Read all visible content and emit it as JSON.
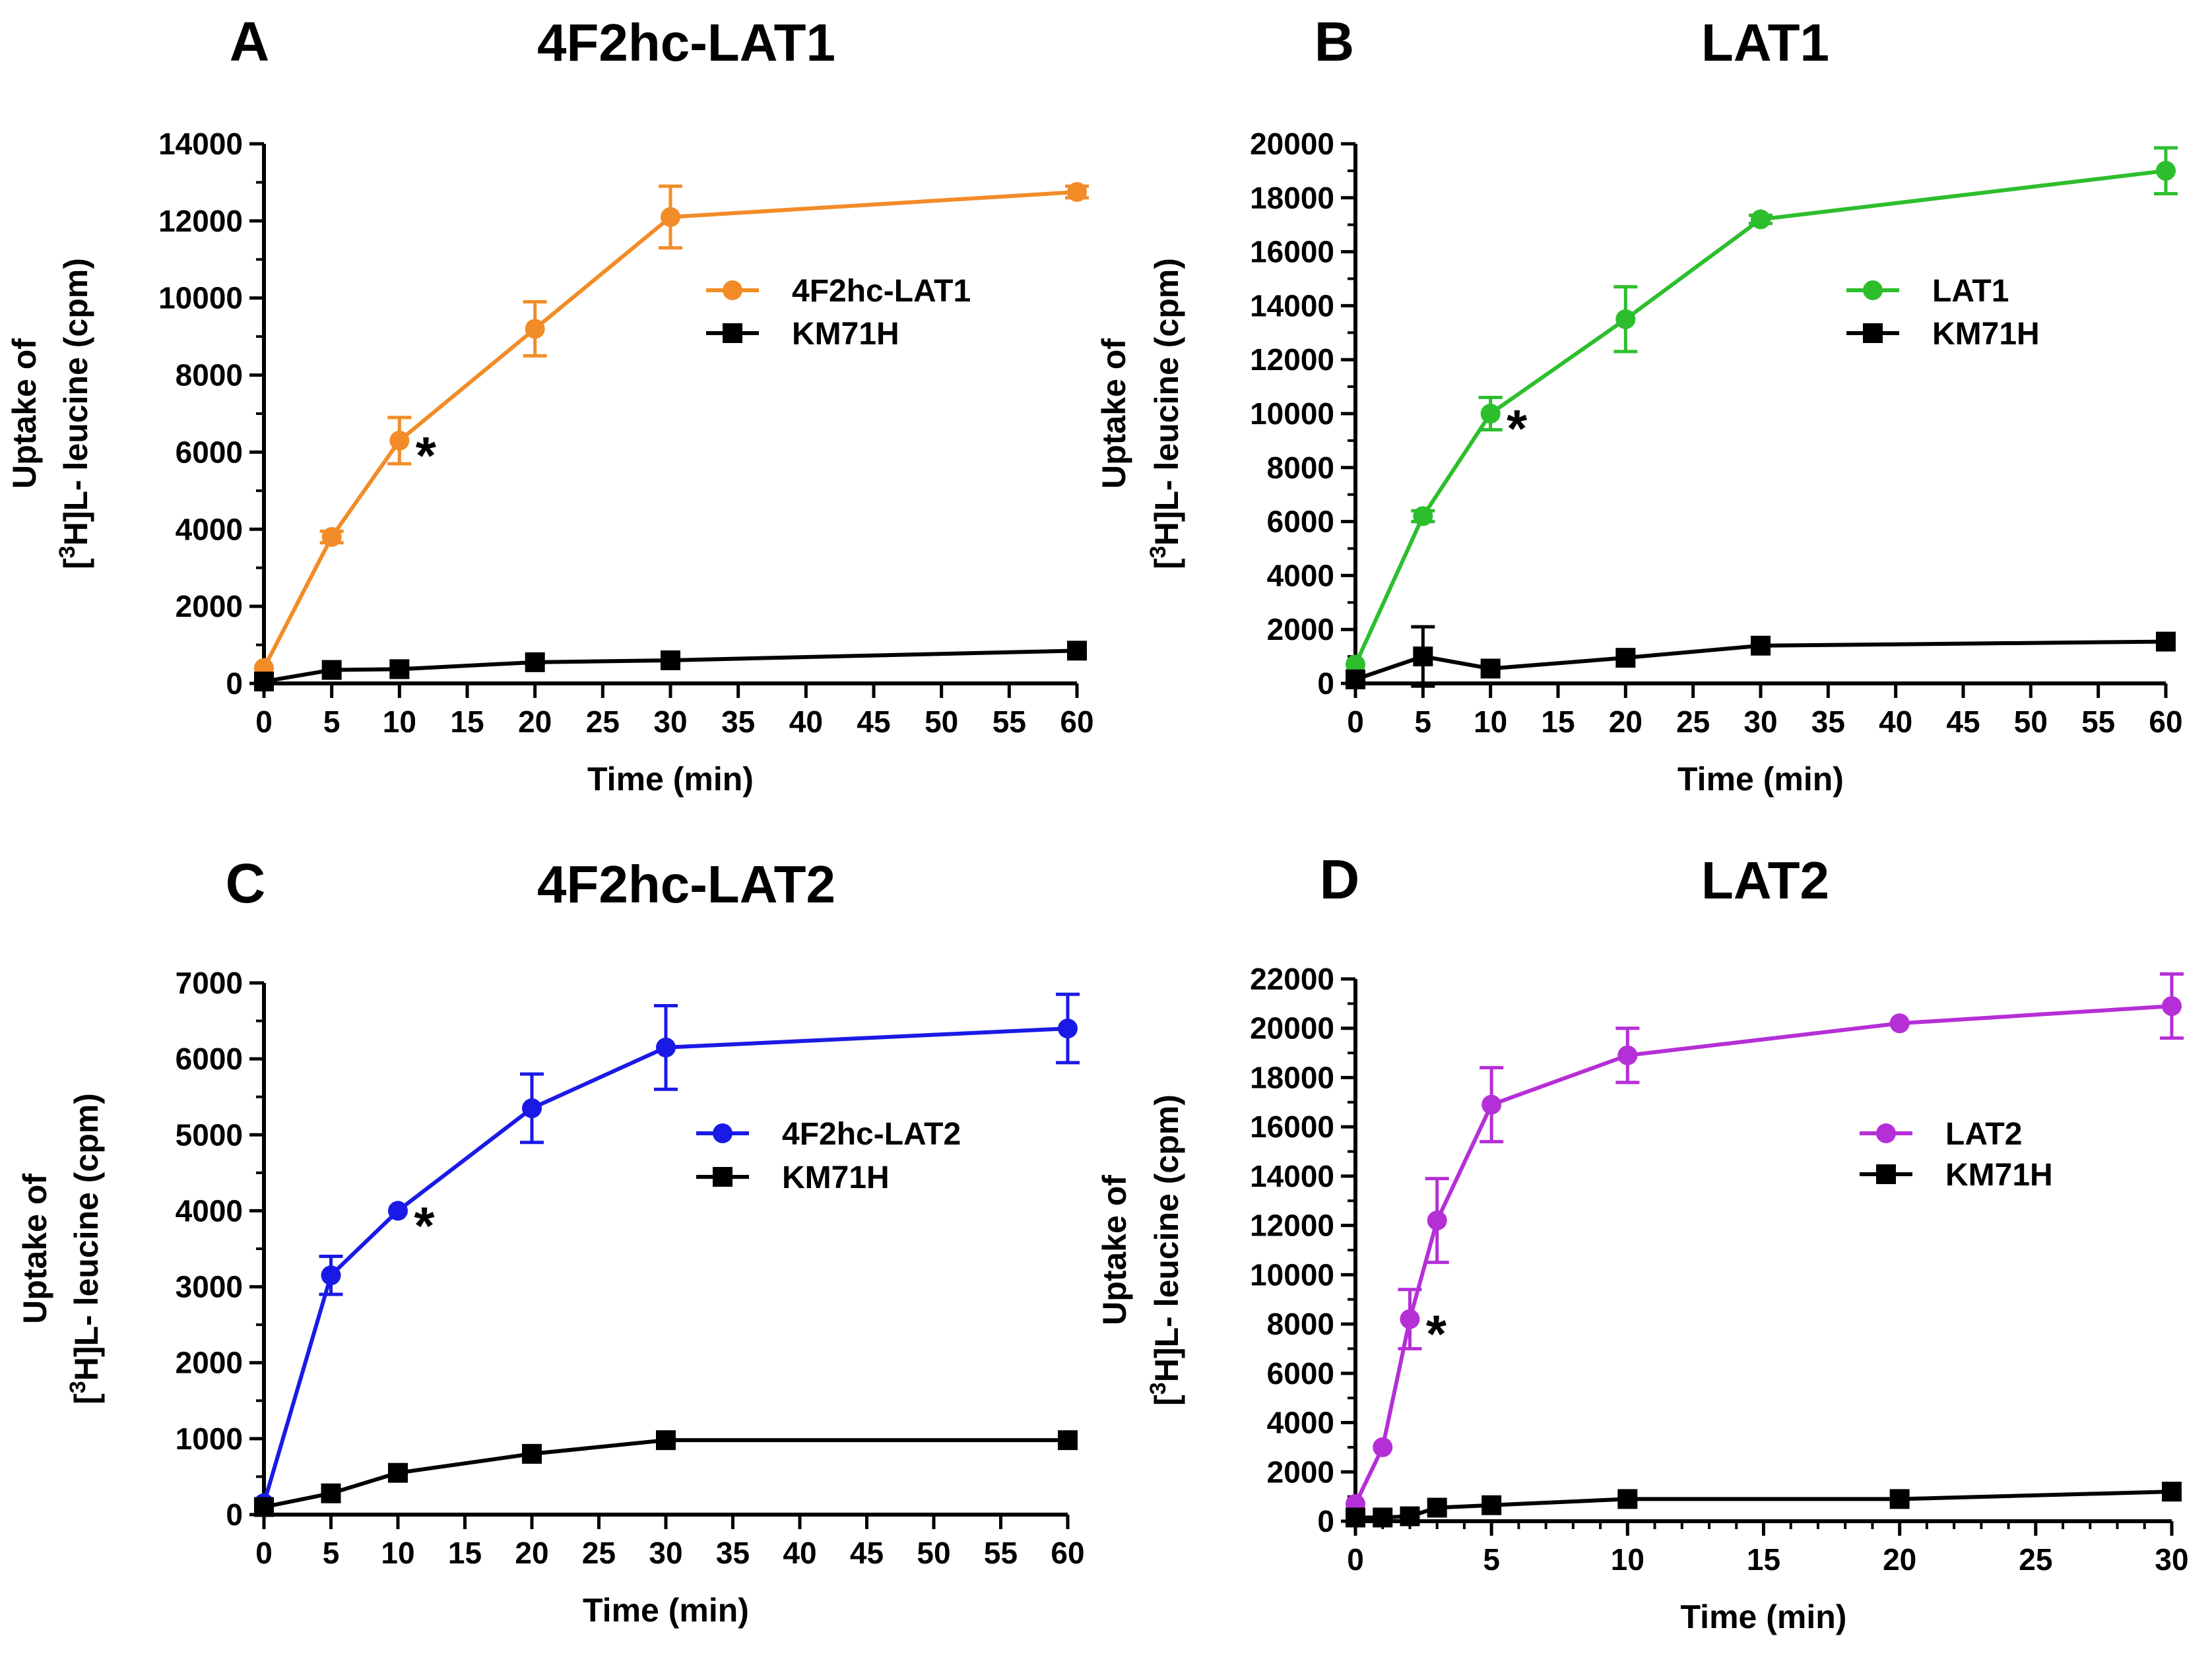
{
  "chart_data": [
    {
      "panel": "A",
      "type": "line",
      "title": "4F2hc-LAT1",
      "xlabel": "Time (min)",
      "ylabel_line1": "Uptake of",
      "ylabel_line2_pre": "[",
      "ylabel_sup": "3",
      "ylabel_line2_post": "H]L- leucine (cpm)",
      "xlim": [
        0,
        60
      ],
      "ylim": [
        0,
        14000
      ],
      "xticks": [
        0,
        5,
        10,
        15,
        20,
        25,
        30,
        35,
        40,
        45,
        50,
        55,
        60
      ],
      "yticks": [
        0,
        2000,
        4000,
        6000,
        8000,
        10000,
        12000,
        14000
      ],
      "legend_position": "upper-right",
      "series": [
        {
          "name": "4F2hc-LAT1",
          "color": "#F28C28",
          "marker": "circle",
          "x": [
            0,
            5,
            10,
            20,
            30,
            60
          ],
          "y": [
            400,
            3800,
            6300,
            9200,
            12100,
            12750
          ],
          "err": [
            0,
            150,
            600,
            700,
            800,
            150
          ]
        },
        {
          "name": "KM71H",
          "color": "#000000",
          "marker": "square",
          "x": [
            0,
            5,
            10,
            20,
            30,
            60
          ],
          "y": [
            50,
            350,
            370,
            550,
            600,
            850
          ],
          "err": [
            0,
            0,
            0,
            0,
            0,
            0
          ]
        }
      ],
      "annotations": [
        {
          "text": "*",
          "x": 10,
          "y": 6300
        }
      ]
    },
    {
      "panel": "B",
      "type": "line",
      "title": "LAT1",
      "xlabel": "Time (min)",
      "ylabel_line1": "Uptake of",
      "ylabel_line2_pre": "[",
      "ylabel_sup": "3",
      "ylabel_line2_post": "H]L- leucine (cpm)",
      "xlim": [
        0,
        60
      ],
      "ylim": [
        0,
        20000
      ],
      "xticks": [
        0,
        5,
        10,
        15,
        20,
        25,
        30,
        35,
        40,
        45,
        50,
        55,
        60
      ],
      "yticks": [
        0,
        2000,
        4000,
        6000,
        8000,
        10000,
        12000,
        14000,
        16000,
        18000,
        20000
      ],
      "legend_position": "upper-right",
      "series": [
        {
          "name": "LAT1",
          "color": "#2DBE2D",
          "marker": "circle",
          "x": [
            0,
            5,
            10,
            20,
            30,
            60
          ],
          "y": [
            700,
            6200,
            10000,
            13500,
            17200,
            19000
          ],
          "err": [
            0,
            200,
            600,
            1200,
            150,
            850
          ]
        },
        {
          "name": "KM71H",
          "color": "#000000",
          "marker": "square",
          "x": [
            0,
            5,
            10,
            20,
            30,
            60
          ],
          "y": [
            150,
            1000,
            550,
            950,
            1400,
            1550
          ],
          "err": [
            0,
            1100,
            0,
            0,
            0,
            0
          ]
        }
      ],
      "annotations": [
        {
          "text": "*",
          "x": 10,
          "y": 10000
        }
      ]
    },
    {
      "panel": "C",
      "type": "line",
      "title": "4F2hc-LAT2",
      "xlabel": "Time (min)",
      "ylabel_line1": "Uptake of",
      "ylabel_line2_pre": "[",
      "ylabel_sup": "3",
      "ylabel_line2_post": "H]L- leucine (cpm)",
      "xlim": [
        0,
        60
      ],
      "ylim": [
        0,
        7000
      ],
      "xticks": [
        0,
        5,
        10,
        15,
        20,
        25,
        30,
        35,
        40,
        45,
        50,
        55,
        60
      ],
      "yticks": [
        0,
        1000,
        2000,
        3000,
        4000,
        5000,
        6000,
        7000
      ],
      "legend_position": "upper-right",
      "series": [
        {
          "name": "4F2hc-LAT2",
          "color": "#1A1AE6",
          "marker": "circle",
          "x": [
            0,
            5,
            10,
            20,
            30,
            60
          ],
          "y": [
            150,
            3150,
            4000,
            5350,
            6150,
            6400
          ],
          "err": [
            0,
            250,
            0,
            450,
            550,
            450
          ]
        },
        {
          "name": "KM71H",
          "color": "#000000",
          "marker": "square",
          "x": [
            0,
            5,
            10,
            20,
            30,
            60
          ],
          "y": [
            100,
            280,
            550,
            800,
            980,
            980
          ],
          "err": [
            0,
            0,
            0,
            0,
            0,
            0
          ]
        }
      ],
      "annotations": [
        {
          "text": "*",
          "x": 10,
          "y": 4000
        }
      ]
    },
    {
      "panel": "D",
      "type": "line",
      "title": "LAT2",
      "xlabel": "Time (min)",
      "ylabel_line1": "Uptake of",
      "ylabel_line2_pre": "[",
      "ylabel_sup": "3",
      "ylabel_line2_post": "H]L- leucine (cpm)",
      "xlim": [
        0,
        30
      ],
      "ylim": [
        0,
        22000
      ],
      "xticks": [
        0,
        5,
        10,
        15,
        20,
        25,
        30
      ],
      "minor_xticks": [
        1,
        2,
        3,
        4,
        6,
        7,
        8,
        9,
        11,
        12,
        13,
        14,
        16,
        17,
        18,
        19,
        21,
        22,
        23,
        24,
        26,
        27,
        28,
        29
      ],
      "yticks": [
        0,
        2000,
        4000,
        6000,
        8000,
        10000,
        12000,
        14000,
        16000,
        18000,
        20000,
        22000
      ],
      "legend_position": "upper-right",
      "series": [
        {
          "name": "LAT2",
          "color": "#B52FD6",
          "marker": "circle",
          "x": [
            0,
            1,
            2,
            3,
            5,
            10,
            20,
            30
          ],
          "y": [
            700,
            3000,
            8200,
            12200,
            16900,
            18900,
            20200,
            20900
          ],
          "err": [
            0,
            0,
            1200,
            1700,
            1500,
            1100,
            0,
            1300
          ]
        },
        {
          "name": "KM71H",
          "color": "#000000",
          "marker": "square",
          "x": [
            0,
            1,
            2,
            3,
            5,
            10,
            20,
            30
          ],
          "y": [
            150,
            150,
            200,
            550,
            650,
            900,
            900,
            1200
          ],
          "err": [
            0,
            0,
            0,
            0,
            0,
            0,
            0,
            0
          ]
        }
      ],
      "annotations": [
        {
          "text": "*",
          "x": 2,
          "y": 8200
        }
      ]
    }
  ]
}
